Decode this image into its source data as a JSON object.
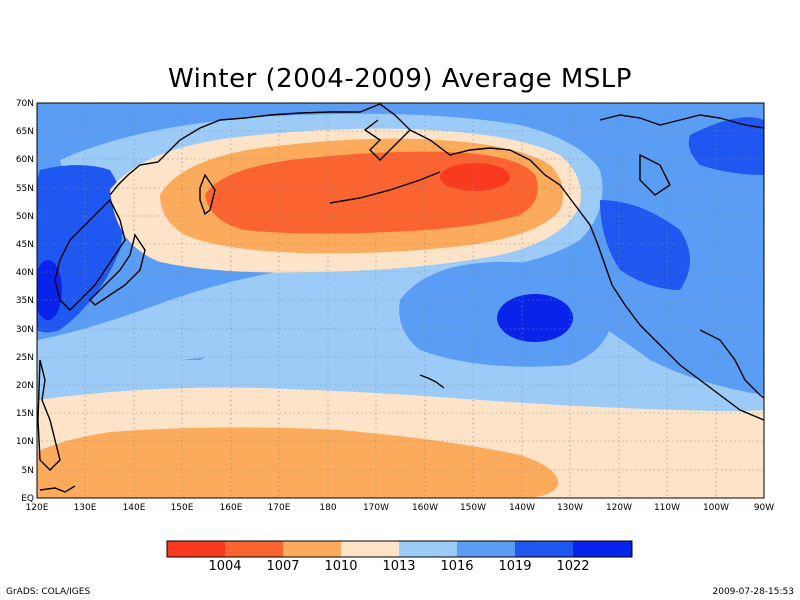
{
  "title": "Winter (2004-2009) Average MSLP",
  "lat_labels": [
    "70N",
    "65N",
    "60N",
    "55N",
    "50N",
    "45N",
    "40N",
    "35N",
    "30N",
    "25N",
    "20N",
    "15N",
    "10N",
    "5N",
    "EQ"
  ],
  "lon_labels": [
    "120E",
    "130E",
    "140E",
    "150E",
    "160E",
    "170E",
    "180",
    "170W",
    "160W",
    "150W",
    "140W",
    "130W",
    "120W",
    "110W",
    "100W",
    "90W"
  ],
  "colorbar": {
    "colors": [
      "#f93a1e",
      "#fb6430",
      "#fcab5d",
      "#fde3c8",
      "#9dcbf7",
      "#5a9df5",
      "#1f58f0",
      "#0a23ea"
    ],
    "labels": [
      "1004",
      "1007",
      "1010",
      "1013",
      "1016",
      "1019",
      "1022"
    ]
  },
  "footer": {
    "left": "GrADS: COLA/IGES",
    "right": "2009-07-28-15:53"
  }
}
